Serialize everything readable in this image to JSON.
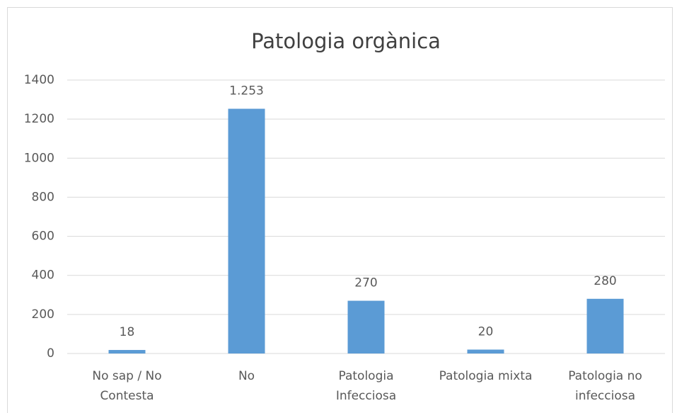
{
  "chart_data": {
    "type": "bar",
    "title": "Patologia orgànica",
    "categories": [
      "No sap / No Contesta",
      "No",
      "Patologia Infecciosa",
      "Patologia mixta",
      "Patologia no infecciosa"
    ],
    "values": [
      18,
      1253,
      270,
      20,
      280
    ],
    "value_labels": [
      "18",
      "1.253",
      "270",
      "20",
      "280"
    ],
    "color": "#5b9bd5",
    "ylim": [
      0,
      1400
    ],
    "yticks": [
      0,
      200,
      400,
      600,
      800,
      1000,
      1200,
      1400
    ],
    "grid": true
  }
}
